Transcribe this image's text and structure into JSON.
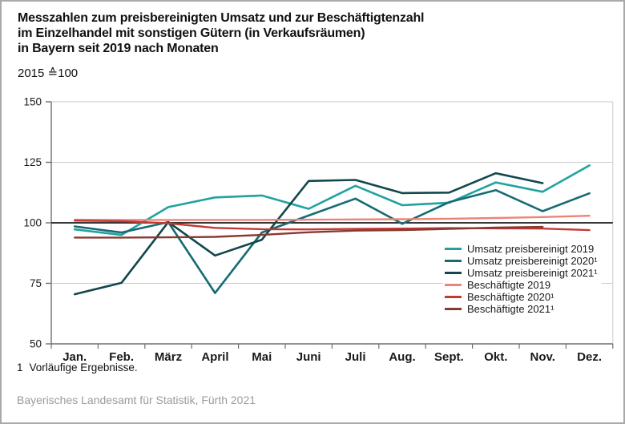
{
  "header": {
    "title_lines": [
      "Messzahlen zum preisbereinigten Umsatz und zur Beschäftigtenzahl",
      "im Einzelhandel mit sonstigen Gütern (in Verkaufsräumen)",
      "in Bayern seit 2019 nach Monaten"
    ],
    "subtitle": "2015 ≙100"
  },
  "footnote": {
    "marker": "1",
    "text": "Vorläufige Ergebnisse."
  },
  "source": "Bayerisches Landesamt für Statistik, Fürth 2021",
  "colors": {
    "grid": "#cbcbcb",
    "axis": "#6f6f6f",
    "baseline": "#1c1c1c",
    "text": "#1a1a1a",
    "source_text": "#9b9b9b",
    "frame_border": "#a9a9a9"
  },
  "chart_data": {
    "type": "line",
    "title": "Messzahlen zum preisbereinigten Umsatz und zur Beschäftigtenzahl im Einzelhandel mit sonstigen Gütern (in Verkaufsräumen) in Bayern seit 2019 nach Monaten",
    "subtitle": "2015 ≙100",
    "categories": [
      "Jan.",
      "Feb.",
      "März",
      "April",
      "Mai",
      "Juni",
      "Juli",
      "Aug.",
      "Sept.",
      "Okt.",
      "Nov.",
      "Dez."
    ],
    "ylim": [
      50,
      150
    ],
    "yticks": [
      150,
      125,
      100,
      75,
      50
    ],
    "baseline": 100,
    "grid": true,
    "legend_position": "inside-right",
    "series": [
      {
        "name": "Umsatz preisbereinigt 2019",
        "color": "#21A2A0",
        "width": 2.6,
        "values": [
          97.3,
          95.0,
          106.5,
          110.5,
          111.3,
          105.8,
          115.3,
          107.3,
          108.3,
          116.7,
          112.8,
          123.7
        ]
      },
      {
        "name": "Umsatz preisbereinigt 2020¹",
        "color": "#166B74",
        "width": 2.6,
        "values": [
          98.5,
          96.0,
          100.3,
          71.0,
          96.0,
          103.0,
          110.0,
          99.6,
          108.5,
          113.5,
          104.8,
          112.2
        ]
      },
      {
        "name": "Umsatz preisbereinigt 2021¹",
        "color": "#12474C",
        "width": 2.6,
        "values": [
          70.5,
          75.2,
          100.3,
          86.5,
          93.0,
          117.3,
          117.7,
          112.3,
          112.5,
          120.5,
          116.4
        ]
      },
      {
        "name": "Beschäftigte 2019",
        "color": "#EE8377",
        "width": 2.4,
        "values": [
          101.3,
          101.2,
          101.2,
          101.2,
          101.2,
          101.3,
          101.4,
          101.5,
          101.7,
          102.0,
          102.4,
          102.9
        ]
      },
      {
        "name": "Beschäftigte 2020¹",
        "color": "#C33A35",
        "width": 2.4,
        "values": [
          100.9,
          100.7,
          99.8,
          97.9,
          97.4,
          97.3,
          97.5,
          97.6,
          97.8,
          97.7,
          97.6,
          97.0
        ]
      },
      {
        "name": "Beschäftigte 2021¹",
        "color": "#853A31",
        "width": 2.4,
        "values": [
          93.9,
          93.9,
          94.0,
          94.2,
          95.0,
          96.1,
          96.8,
          97.0,
          97.5,
          98.0,
          98.3
        ]
      }
    ]
  }
}
